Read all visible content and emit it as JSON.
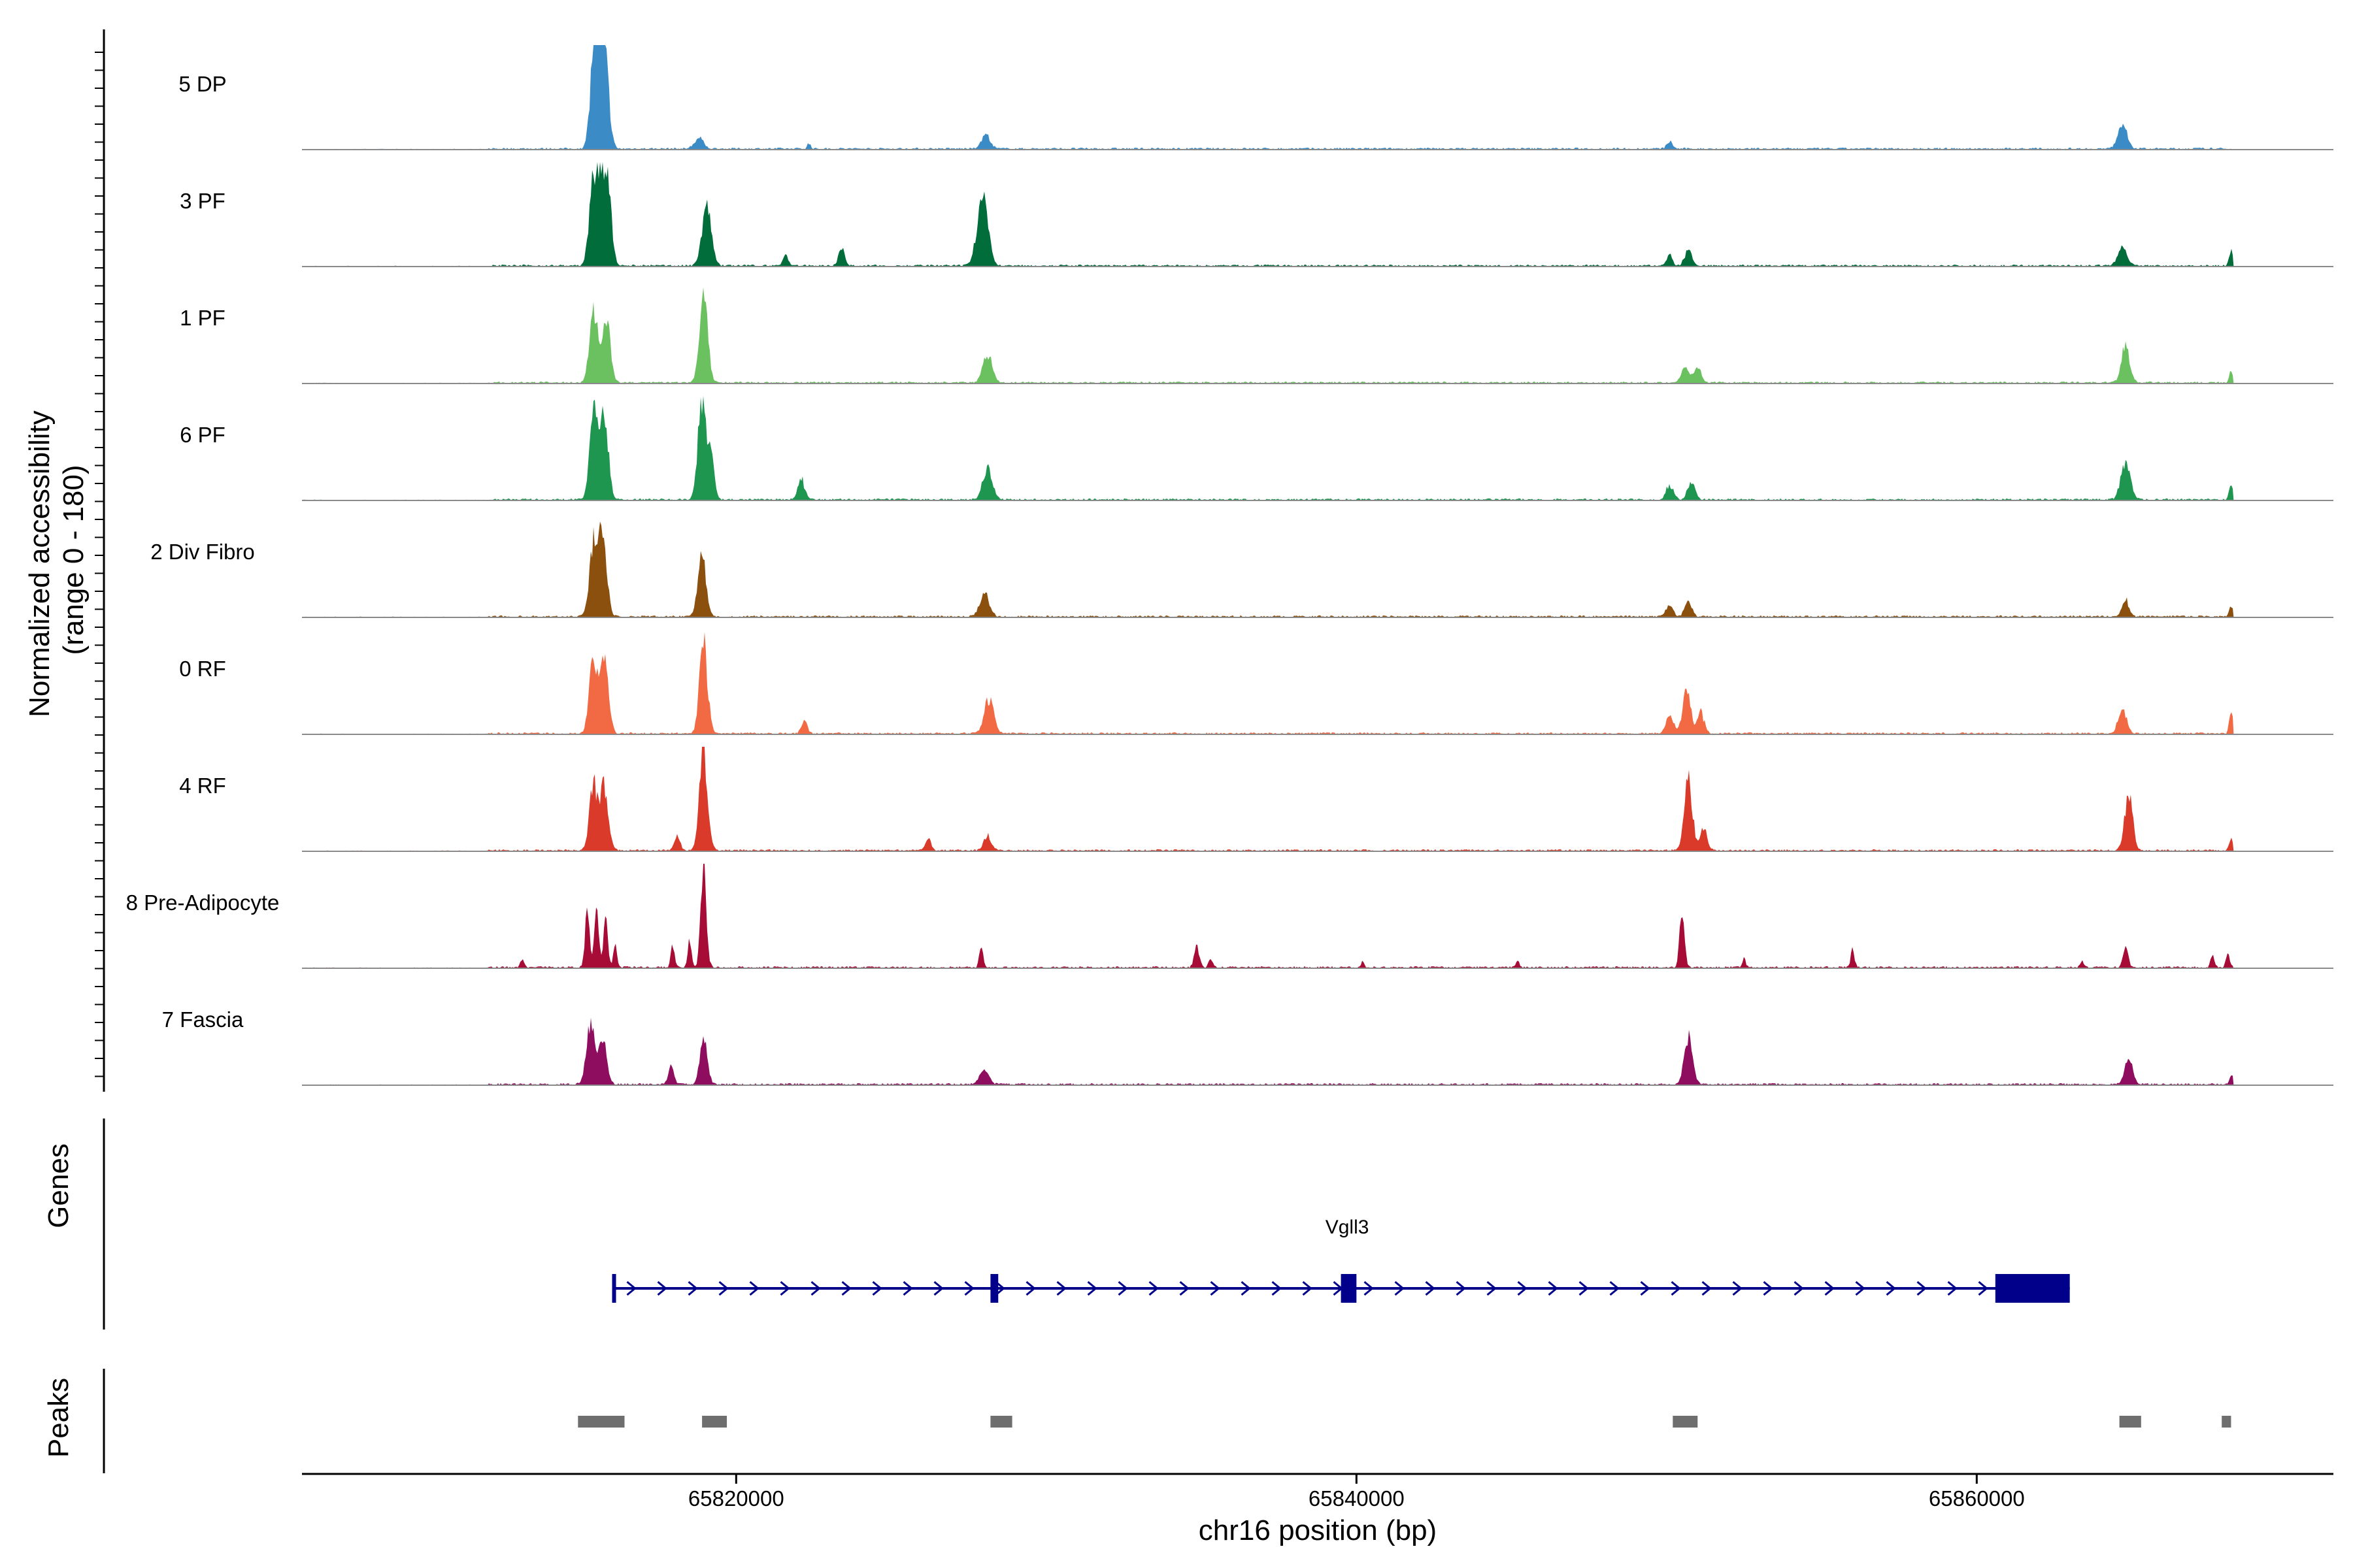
{
  "chart_data": {
    "type": "area",
    "title": "",
    "ylabel_line1": "Normalized accessibility",
    "ylabel_line2": "(range 0 - 180)",
    "ylim": [
      0,
      180
    ],
    "xlabel": "chr16 position (bp)",
    "xlim": [
      65806000,
      65871500
    ],
    "xticks": [
      {
        "value": 65820000,
        "label": "65820000"
      },
      {
        "value": 65840000,
        "label": "65840000"
      },
      {
        "value": 65860000,
        "label": "65860000"
      }
    ],
    "tracks": [
      {
        "name": "5 DP",
        "color": "#3B8BC7",
        "peaks": [
          {
            "center": 65815400,
            "width": 120,
            "height": 130
          },
          {
            "center": 65815550,
            "width": 120,
            "height": 150
          },
          {
            "center": 65815700,
            "width": 120,
            "height": 118
          },
          {
            "center": 65815850,
            "width": 110,
            "height": 70
          },
          {
            "center": 65818800,
            "width": 150,
            "height": 18
          },
          {
            "center": 65822350,
            "width": 60,
            "height": 9
          },
          {
            "center": 65828050,
            "width": 140,
            "height": 24
          },
          {
            "center": 65850100,
            "width": 90,
            "height": 12
          },
          {
            "center": 65864700,
            "width": 150,
            "height": 40
          }
        ]
      },
      {
        "name": "3 PF",
        "color": "#006D3A",
        "peaks": [
          {
            "center": 65815400,
            "width": 130,
            "height": 160
          },
          {
            "center": 65815700,
            "width": 130,
            "height": 135
          },
          {
            "center": 65815900,
            "width": 110,
            "height": 90
          },
          {
            "center": 65819050,
            "width": 150,
            "height": 100
          },
          {
            "center": 65821600,
            "width": 90,
            "height": 18
          },
          {
            "center": 65823400,
            "width": 90,
            "height": 35
          },
          {
            "center": 65827800,
            "width": 140,
            "height": 40
          },
          {
            "center": 65828000,
            "width": 150,
            "height": 105
          },
          {
            "center": 65850100,
            "width": 90,
            "height": 20
          },
          {
            "center": 65850700,
            "width": 120,
            "height": 25
          },
          {
            "center": 65864700,
            "width": 150,
            "height": 30
          },
          {
            "center": 65868200,
            "width": 60,
            "height": 25
          }
        ]
      },
      {
        "name": "1 PF",
        "color": "#6BC05F",
        "peaks": [
          {
            "center": 65815400,
            "width": 130,
            "height": 125
          },
          {
            "center": 65815800,
            "width": 130,
            "height": 120
          },
          {
            "center": 65818950,
            "width": 130,
            "height": 155
          },
          {
            "center": 65828100,
            "width": 150,
            "height": 50
          },
          {
            "center": 65850600,
            "width": 120,
            "height": 30
          },
          {
            "center": 65851000,
            "width": 120,
            "height": 25
          },
          {
            "center": 65864800,
            "width": 130,
            "height": 65
          },
          {
            "center": 65868200,
            "width": 60,
            "height": 18
          }
        ]
      },
      {
        "name": "6 PF",
        "color": "#1E9650",
        "peaks": [
          {
            "center": 65815400,
            "width": 130,
            "height": 150
          },
          {
            "center": 65815750,
            "width": 130,
            "height": 140
          },
          {
            "center": 65818900,
            "width": 130,
            "height": 170
          },
          {
            "center": 65819200,
            "width": 100,
            "height": 70
          },
          {
            "center": 65822100,
            "width": 110,
            "height": 35
          },
          {
            "center": 65828100,
            "width": 150,
            "height": 55
          },
          {
            "center": 65850100,
            "width": 120,
            "height": 25
          },
          {
            "center": 65850800,
            "width": 120,
            "height": 30
          },
          {
            "center": 65864800,
            "width": 150,
            "height": 65
          },
          {
            "center": 65868200,
            "width": 60,
            "height": 28
          }
        ]
      },
      {
        "name": "2 Div Fibro",
        "color": "#8B4F0E",
        "peaks": [
          {
            "center": 65815400,
            "width": 130,
            "height": 130
          },
          {
            "center": 65815700,
            "width": 130,
            "height": 145
          },
          {
            "center": 65818900,
            "width": 130,
            "height": 110
          },
          {
            "center": 65828000,
            "width": 150,
            "height": 40
          },
          {
            "center": 65850100,
            "width": 110,
            "height": 20
          },
          {
            "center": 65850700,
            "width": 110,
            "height": 30
          },
          {
            "center": 65864800,
            "width": 110,
            "height": 28
          },
          {
            "center": 65868200,
            "width": 60,
            "height": 18
          }
        ]
      },
      {
        "name": "0 RF",
        "color": "#F16A43",
        "peaks": [
          {
            "center": 65815400,
            "width": 130,
            "height": 130
          },
          {
            "center": 65815750,
            "width": 130,
            "height": 125
          },
          {
            "center": 65818950,
            "width": 130,
            "height": 150
          },
          {
            "center": 65822200,
            "width": 90,
            "height": 22
          },
          {
            "center": 65828150,
            "width": 150,
            "height": 60
          },
          {
            "center": 65850100,
            "width": 120,
            "height": 30
          },
          {
            "center": 65850650,
            "width": 130,
            "height": 75
          },
          {
            "center": 65851100,
            "width": 110,
            "height": 35
          },
          {
            "center": 65864700,
            "width": 130,
            "height": 45
          },
          {
            "center": 65868200,
            "width": 60,
            "height": 38
          }
        ]
      },
      {
        "name": "4 RF",
        "color": "#DA3A2A",
        "peaks": [
          {
            "center": 65815400,
            "width": 130,
            "height": 115
          },
          {
            "center": 65815750,
            "width": 130,
            "height": 105
          },
          {
            "center": 65818100,
            "width": 90,
            "height": 25
          },
          {
            "center": 65818950,
            "width": 130,
            "height": 165
          },
          {
            "center": 65826200,
            "width": 90,
            "height": 20
          },
          {
            "center": 65828100,
            "width": 120,
            "height": 25
          },
          {
            "center": 65850700,
            "width": 130,
            "height": 125
          },
          {
            "center": 65851200,
            "width": 110,
            "height": 40
          },
          {
            "center": 65864900,
            "width": 130,
            "height": 95
          },
          {
            "center": 65868200,
            "width": 60,
            "height": 20
          }
        ]
      },
      {
        "name": "8 Pre-Adipocyte",
        "color": "#A60C35",
        "peaks": [
          {
            "center": 65813100,
            "width": 60,
            "height": 15
          },
          {
            "center": 65815200,
            "width": 70,
            "height": 95
          },
          {
            "center": 65815500,
            "width": 70,
            "height": 110
          },
          {
            "center": 65815800,
            "width": 70,
            "height": 85
          },
          {
            "center": 65816100,
            "width": 60,
            "height": 35
          },
          {
            "center": 65817950,
            "width": 60,
            "height": 40
          },
          {
            "center": 65818500,
            "width": 60,
            "height": 45
          },
          {
            "center": 65818950,
            "width": 90,
            "height": 170
          },
          {
            "center": 65827900,
            "width": 60,
            "height": 35
          },
          {
            "center": 65834850,
            "width": 80,
            "height": 40
          },
          {
            "center": 65835300,
            "width": 60,
            "height": 15
          },
          {
            "center": 65840200,
            "width": 40,
            "height": 15
          },
          {
            "center": 65845200,
            "width": 50,
            "height": 12
          },
          {
            "center": 65850500,
            "width": 80,
            "height": 95
          },
          {
            "center": 65852500,
            "width": 50,
            "height": 15
          },
          {
            "center": 65856000,
            "width": 60,
            "height": 30
          },
          {
            "center": 65863400,
            "width": 60,
            "height": 12
          },
          {
            "center": 65864800,
            "width": 80,
            "height": 40
          },
          {
            "center": 65867600,
            "width": 60,
            "height": 20
          },
          {
            "center": 65868100,
            "width": 60,
            "height": 25
          }
        ]
      },
      {
        "name": "7 Fascia",
        "color": "#8F0D5E",
        "peaks": [
          {
            "center": 65815300,
            "width": 130,
            "height": 110
          },
          {
            "center": 65815700,
            "width": 130,
            "height": 80
          },
          {
            "center": 65817900,
            "width": 90,
            "height": 30
          },
          {
            "center": 65818950,
            "width": 120,
            "height": 75
          },
          {
            "center": 65828000,
            "width": 150,
            "height": 25
          },
          {
            "center": 65850700,
            "width": 130,
            "height": 80
          },
          {
            "center": 65864900,
            "width": 130,
            "height": 45
          },
          {
            "center": 65868200,
            "width": 60,
            "height": 18
          }
        ]
      }
    ],
    "genes_panel_label": "Genes",
    "gene": {
      "name": "Vgll3",
      "strand": "+",
      "start": 65816000,
      "end": 65863000,
      "exons": [
        {
          "start": 65816000,
          "end": 65816100
        },
        {
          "start": 65828200,
          "end": 65828450
        },
        {
          "start": 65839500,
          "end": 65840000
        },
        {
          "start": 65860600,
          "end": 65863000
        }
      ]
    },
    "peaks_panel_label": "Peaks",
    "peak_regions": [
      {
        "start": 65814900,
        "end": 65816400
      },
      {
        "start": 65818900,
        "end": 65819700
      },
      {
        "start": 65828200,
        "end": 65828900
      },
      {
        "start": 65850200,
        "end": 65851000
      },
      {
        "start": 65864600,
        "end": 65865300
      },
      {
        "start": 65867900,
        "end": 65868200
      }
    ]
  }
}
